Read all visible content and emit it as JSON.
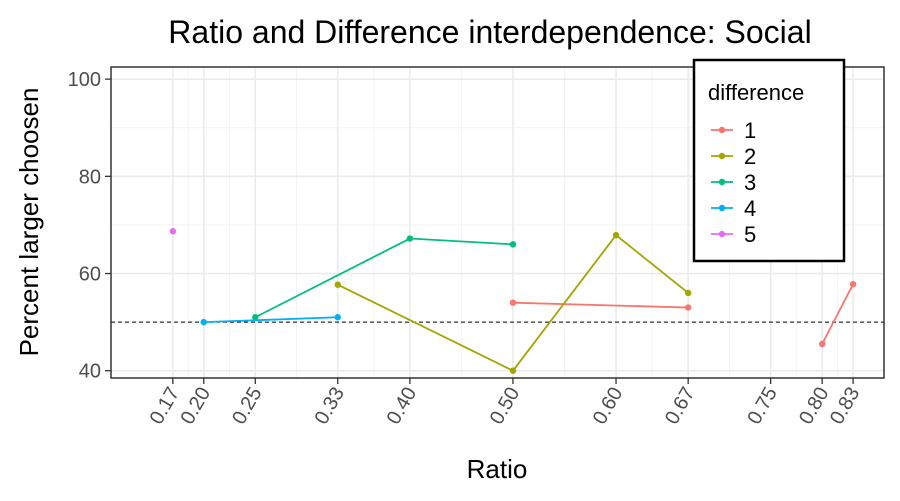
{
  "chart_data": {
    "type": "line",
    "title": "Ratio and Difference interdependence: Social",
    "xlabel": "Ratio",
    "ylabel": "Percent larger choosen",
    "xlim": [
      0.11,
      0.86
    ],
    "ylim": [
      38.5,
      102.5
    ],
    "x_ticks": [
      0.17,
      0.2,
      0.25,
      0.33,
      0.4,
      0.5,
      0.6,
      0.67,
      0.75,
      0.8,
      0.83
    ],
    "x_tick_labels": [
      "0.17",
      "0.20",
      "0.25",
      "0.33",
      "0.40",
      "0.50",
      "0.60",
      "0.67",
      "0.75",
      "0.80",
      "0.83"
    ],
    "y_ticks": [
      40,
      60,
      80,
      100
    ],
    "y_tick_labels": [
      "40",
      "60",
      "80",
      "100"
    ],
    "reference_line": {
      "y": 50,
      "style": "dashed"
    },
    "grid": true,
    "legend": {
      "title": "difference",
      "placement": "top-right"
    },
    "series": [
      {
        "name": "1",
        "color": "#F8766D",
        "segments": [
          [
            [
              0.5,
              54.0
            ],
            [
              0.67,
              53.0
            ]
          ],
          [
            [
              0.8,
              45.5
            ],
            [
              0.83,
              57.8
            ]
          ]
        ]
      },
      {
        "name": "2",
        "color": "#A3A500",
        "segments": [
          [
            [
              0.33,
              57.7
            ],
            [
              0.5,
              40.0
            ],
            [
              0.6,
              67.9
            ],
            [
              0.67,
              56.0
            ]
          ]
        ]
      },
      {
        "name": "3",
        "color": "#00BF7D",
        "segments": [
          [
            [
              0.25,
              51.0
            ],
            [
              0.4,
              67.2
            ],
            [
              0.5,
              66.0
            ]
          ]
        ]
      },
      {
        "name": "4",
        "color": "#00B0F6",
        "segments": [
          [
            [
              0.2,
              50.0
            ],
            [
              0.33,
              51.0
            ]
          ]
        ]
      },
      {
        "name": "5",
        "color": "#E76BF3",
        "segments": [
          [
            [
              0.17,
              68.7
            ]
          ]
        ]
      }
    ]
  }
}
